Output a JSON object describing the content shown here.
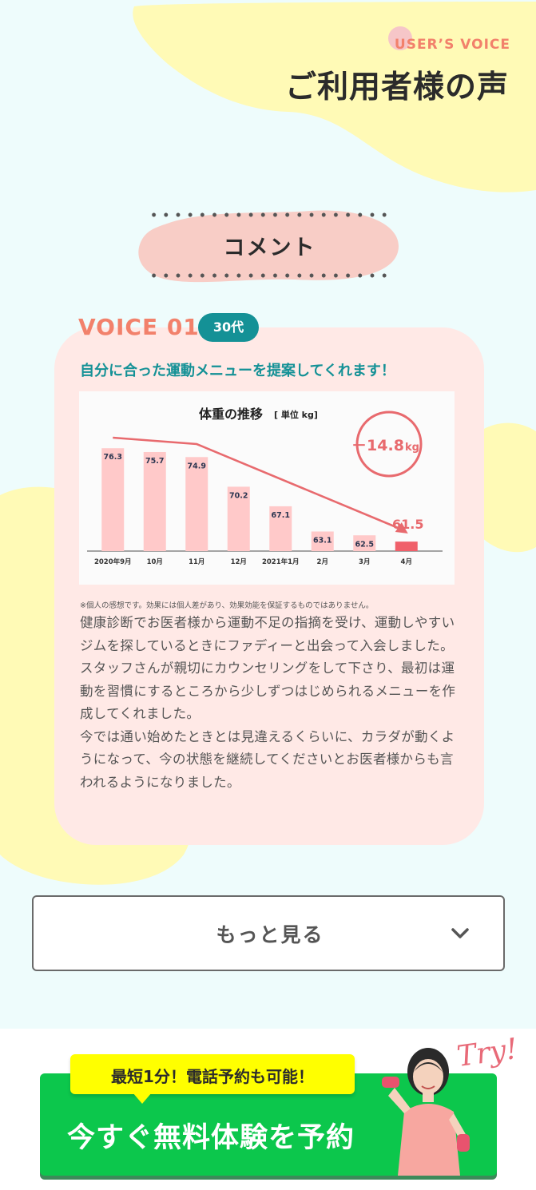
{
  "header": {
    "eyebrow": "USER’S VOICE",
    "title": "ご利用者様の声"
  },
  "section_label": "コメント",
  "voice": {
    "label": "VOICE 01",
    "age": "30代",
    "headline": "自分に合った運動メニューを提案してくれます！",
    "note": "※個人の感想です。効果には個人差があり、効果効能を保証するものではありません。",
    "paragraphs": [
      "健康診断でお医者様から運動不足の指摘を受け、運動しやすいジムを探しているときにファディーと出会って入会しました。",
      "スタッフさんが親切にカウンセリングをして下さり、最初は運動を習慣にするところから少しずつはじめられるメニューを作成してくれました。",
      "今では通い始めたときとは見違えるくらいに、カラダが動くようになって、今の状態を継続してくださいとお医者様からも言われるようになりました。"
    ]
  },
  "chart_data": {
    "type": "bar",
    "title": "体重の推移",
    "unit_label": "[ 単位 kg]",
    "categories": [
      "2020年9月",
      "10月",
      "11月",
      "12月",
      "2021年1月",
      "2月",
      "3月",
      "4月"
    ],
    "values": [
      76.3,
      75.7,
      74.9,
      70.2,
      67.1,
      63.1,
      62.5,
      61.5
    ],
    "value_labels": [
      "76.3",
      "75.7",
      "74.9",
      "70.2",
      "67.1",
      "63.1",
      "62.5",
      "61.5"
    ],
    "badge_value": "－14.8",
    "badge_unit": "kg",
    "bar_color": "#ffc9c9",
    "highlight_color": "#f0606a",
    "trend_color": "#e86a6e"
  },
  "more_button": {
    "label": "もっと見る"
  },
  "cta": {
    "bubble": "最短1分！電話予約も可能！",
    "label": "今すぐ無料体験を予約",
    "try_text": "Try!"
  },
  "colors": {
    "accent": "#f2816b",
    "teal": "#149196",
    "cta_green": "#0cc74c",
    "bubble_yellow": "#ffff00",
    "blob_yellow": "#fffab6",
    "blob_pink": "#f8cdc6",
    "bg": "#eefcfc"
  }
}
